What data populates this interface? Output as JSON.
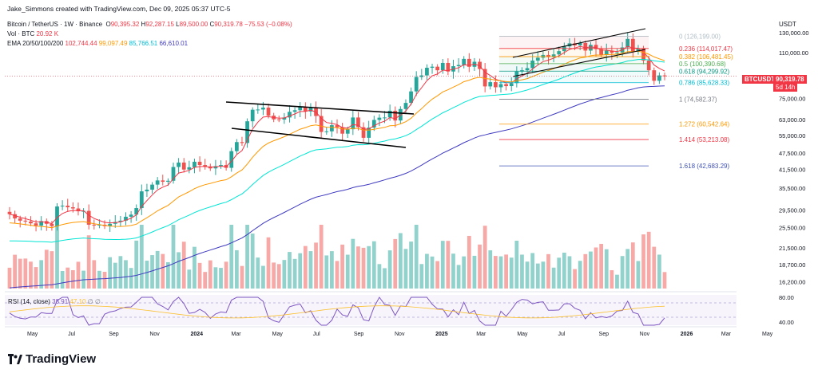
{
  "header": {
    "author_line": "Jake_Simmons created with TradingView.com, Dec 09, 2025 05:37 UTC-5",
    "symbol": "Bitcoin / TetherUS · 1W · Binance",
    "ohlc": {
      "o_label": "O",
      "o": "90,395.32",
      "h_label": "H",
      "h": "92,287.15",
      "l_label": "L",
      "l": "89,500.00",
      "c_label": "C",
      "c": "90,319.78",
      "change": "−75.53 (−0.08%)"
    },
    "vol_label": "Vol · BTC",
    "vol_value": "20.92 K",
    "ema_label": "EMA 20/50/100/200",
    "ema_values": [
      "102,744.44",
      "99,097.49",
      "85,766.51",
      "66,610.01"
    ],
    "ema_colors": [
      "#f23645",
      "#ff9800",
      "#00e5d4",
      "#3f3ac0"
    ]
  },
  "price_axis": {
    "currency": "USDT",
    "ticks": [
      "130,000.00",
      "110,000.00",
      "75,000.00",
      "63,000.00",
      "55,000.00",
      "47,500.00",
      "41,500.00",
      "35,500.00",
      "29,500.00",
      "25,500.00",
      "21,500.00",
      "18,700.00",
      "16,200.00"
    ],
    "last_symbol": "BTCUSDT",
    "last_price": "90,319.78",
    "last_countdown": "5d 14h"
  },
  "rsi": {
    "label": "RSI (14, close)",
    "value": "38.91",
    "value2": "47.10",
    "extra": "∅  ∅",
    "ticks": [
      "80.00",
      "40.00"
    ]
  },
  "time_axis": [
    "May",
    "Jul",
    "Sep",
    "Nov",
    "2024",
    "Mar",
    "May",
    "Jul",
    "Sep",
    "Nov",
    "2025",
    "Mar",
    "May",
    "Jul",
    "Sep",
    "Nov",
    "2026",
    "Mar",
    "May"
  ],
  "brand": "TradingView",
  "fib_levels": [
    {
      "ratio": "0",
      "price": "126,199.00",
      "color": "#b0bec5"
    },
    {
      "ratio": "0.236",
      "price": "114,017.47",
      "color": "#f23645"
    },
    {
      "ratio": "0.382",
      "price": "106,481.45",
      "color": "#ff9800"
    },
    {
      "ratio": "0.5",
      "price": "100,390.68",
      "color": "#4caf50"
    },
    {
      "ratio": "0.618",
      "price": "94,299.92",
      "color": "#089981"
    },
    {
      "ratio": "0.786",
      "price": "85,628.33",
      "color": "#00bcd4"
    },
    {
      "ratio": "1",
      "price": "74,582.37",
      "color": "#787b86"
    },
    {
      "ratio": "1.272",
      "price": "60,542.64",
      "color": "#ff9800"
    },
    {
      "ratio": "1.414",
      "price": "53,213.08",
      "color": "#f23645"
    },
    {
      "ratio": "1.618",
      "price": "42,683.29",
      "color": "#3f51b5"
    }
  ],
  "chart_data": {
    "type": "candlestick",
    "interval": "1W",
    "symbol": "BTCUSDT",
    "x_range": [
      "2023-04",
      "2026-05"
    ],
    "y_scale": "log",
    "y_range": [
      15000,
      140000
    ],
    "close_approx": [
      28500,
      27500,
      27000,
      26800,
      26400,
      25900,
      26900,
      26300,
      25800,
      30400,
      30600,
      30200,
      29900,
      29200,
      29300,
      26100,
      26000,
      26100,
      25800,
      26300,
      26700,
      27000,
      27900,
      28400,
      30000,
      34500,
      35000,
      36500,
      37800,
      37400,
      37700,
      42300,
      43900,
      41400,
      42200,
      44200,
      43000,
      42500,
      41800,
      42600,
      43000,
      42000,
      48300,
      52100,
      51700,
      62000,
      68300,
      68400,
      69500,
      65000,
      63000,
      62900,
      64000,
      67100,
      68000,
      70000,
      67300,
      69600,
      64800,
      56700,
      57000,
      60000,
      59000,
      55900,
      58000,
      64000,
      59000,
      54000,
      58800,
      62700,
      63900,
      64000,
      67700,
      62400,
      68700,
      72300,
      79600,
      89800,
      91000,
      97000,
      97900,
      95000,
      101000,
      94000,
      98300,
      99300,
      104500,
      97800,
      102000,
      96000,
      83000,
      86000,
      82400,
      84600,
      83200,
      85300,
      94000,
      95000,
      96700,
      103000,
      105500,
      108000,
      106000,
      108500,
      111500,
      116000,
      119000,
      117000,
      119300,
      112000,
      117500,
      113400,
      108000,
      112000,
      110000,
      110200,
      115000,
      123500,
      111000,
      114000,
      103000,
      95000,
      87000,
      91000,
      90320
    ],
    "volume_note": "weekly volume histogram, same colour as candle direction",
    "rsi_values_last": [
      38.91,
      47.1
    ]
  }
}
